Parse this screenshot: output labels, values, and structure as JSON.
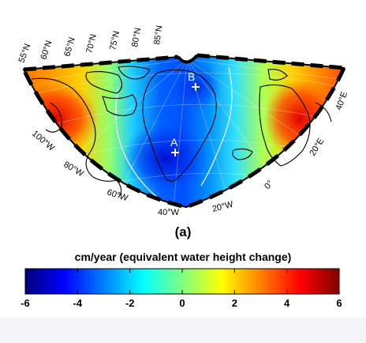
{
  "panel_label": "(a)",
  "map": {
    "latitude_labels": [
      "55°N",
      "60°N",
      "65°N",
      "70°N",
      "75°N",
      "80°N",
      "85°N"
    ],
    "longitude_labels": [
      "100°W",
      "80°W",
      "60°W",
      "40°W",
      "20°W",
      "0°",
      "20°E",
      "40°E"
    ],
    "markers": [
      {
        "label": "A"
      },
      {
        "label": "B"
      }
    ]
  },
  "colorbar": {
    "title": "cm/year (equivalent water height change)",
    "min": -6,
    "max": 6,
    "ticks": [
      "-6",
      "-4",
      "-2",
      "0",
      "2",
      "4",
      "6"
    ],
    "colormap": [
      "#000080",
      "#0000ff",
      "#0080ff",
      "#00ffff",
      "#80ff80",
      "#ffff00",
      "#ff8000",
      "#ff0000",
      "#800000"
    ]
  }
}
